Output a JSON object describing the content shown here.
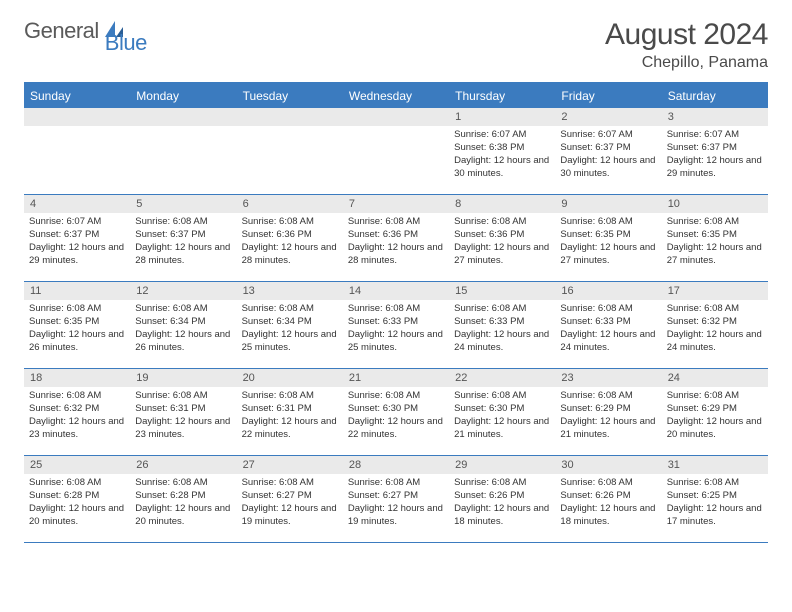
{
  "logo": {
    "text1": "General",
    "text2": "Blue"
  },
  "title": "August 2024",
  "location": "Chepillo, Panama",
  "daysOfWeek": [
    "Sunday",
    "Monday",
    "Tuesday",
    "Wednesday",
    "Thursday",
    "Friday",
    "Saturday"
  ],
  "colors": {
    "accent": "#3b7bbf",
    "headerText": "#ffffff",
    "dayNumBg": "#eaeaea",
    "text": "#333333"
  },
  "firstDayOffset": 4,
  "daysInMonth": 31,
  "days": {
    "1": {
      "sunrise": "6:07 AM",
      "sunset": "6:38 PM",
      "daylight": "12 hours and 30 minutes."
    },
    "2": {
      "sunrise": "6:07 AM",
      "sunset": "6:37 PM",
      "daylight": "12 hours and 30 minutes."
    },
    "3": {
      "sunrise": "6:07 AM",
      "sunset": "6:37 PM",
      "daylight": "12 hours and 29 minutes."
    },
    "4": {
      "sunrise": "6:07 AM",
      "sunset": "6:37 PM",
      "daylight": "12 hours and 29 minutes."
    },
    "5": {
      "sunrise": "6:08 AM",
      "sunset": "6:37 PM",
      "daylight": "12 hours and 28 minutes."
    },
    "6": {
      "sunrise": "6:08 AM",
      "sunset": "6:36 PM",
      "daylight": "12 hours and 28 minutes."
    },
    "7": {
      "sunrise": "6:08 AM",
      "sunset": "6:36 PM",
      "daylight": "12 hours and 28 minutes."
    },
    "8": {
      "sunrise": "6:08 AM",
      "sunset": "6:36 PM",
      "daylight": "12 hours and 27 minutes."
    },
    "9": {
      "sunrise": "6:08 AM",
      "sunset": "6:35 PM",
      "daylight": "12 hours and 27 minutes."
    },
    "10": {
      "sunrise": "6:08 AM",
      "sunset": "6:35 PM",
      "daylight": "12 hours and 27 minutes."
    },
    "11": {
      "sunrise": "6:08 AM",
      "sunset": "6:35 PM",
      "daylight": "12 hours and 26 minutes."
    },
    "12": {
      "sunrise": "6:08 AM",
      "sunset": "6:34 PM",
      "daylight": "12 hours and 26 minutes."
    },
    "13": {
      "sunrise": "6:08 AM",
      "sunset": "6:34 PM",
      "daylight": "12 hours and 25 minutes."
    },
    "14": {
      "sunrise": "6:08 AM",
      "sunset": "6:33 PM",
      "daylight": "12 hours and 25 minutes."
    },
    "15": {
      "sunrise": "6:08 AM",
      "sunset": "6:33 PM",
      "daylight": "12 hours and 24 minutes."
    },
    "16": {
      "sunrise": "6:08 AM",
      "sunset": "6:33 PM",
      "daylight": "12 hours and 24 minutes."
    },
    "17": {
      "sunrise": "6:08 AM",
      "sunset": "6:32 PM",
      "daylight": "12 hours and 24 minutes."
    },
    "18": {
      "sunrise": "6:08 AM",
      "sunset": "6:32 PM",
      "daylight": "12 hours and 23 minutes."
    },
    "19": {
      "sunrise": "6:08 AM",
      "sunset": "6:31 PM",
      "daylight": "12 hours and 23 minutes."
    },
    "20": {
      "sunrise": "6:08 AM",
      "sunset": "6:31 PM",
      "daylight": "12 hours and 22 minutes."
    },
    "21": {
      "sunrise": "6:08 AM",
      "sunset": "6:30 PM",
      "daylight": "12 hours and 22 minutes."
    },
    "22": {
      "sunrise": "6:08 AM",
      "sunset": "6:30 PM",
      "daylight": "12 hours and 21 minutes."
    },
    "23": {
      "sunrise": "6:08 AM",
      "sunset": "6:29 PM",
      "daylight": "12 hours and 21 minutes."
    },
    "24": {
      "sunrise": "6:08 AM",
      "sunset": "6:29 PM",
      "daylight": "12 hours and 20 minutes."
    },
    "25": {
      "sunrise": "6:08 AM",
      "sunset": "6:28 PM",
      "daylight": "12 hours and 20 minutes."
    },
    "26": {
      "sunrise": "6:08 AM",
      "sunset": "6:28 PM",
      "daylight": "12 hours and 20 minutes."
    },
    "27": {
      "sunrise": "6:08 AM",
      "sunset": "6:27 PM",
      "daylight": "12 hours and 19 minutes."
    },
    "28": {
      "sunrise": "6:08 AM",
      "sunset": "6:27 PM",
      "daylight": "12 hours and 19 minutes."
    },
    "29": {
      "sunrise": "6:08 AM",
      "sunset": "6:26 PM",
      "daylight": "12 hours and 18 minutes."
    },
    "30": {
      "sunrise": "6:08 AM",
      "sunset": "6:26 PM",
      "daylight": "12 hours and 18 minutes."
    },
    "31": {
      "sunrise": "6:08 AM",
      "sunset": "6:25 PM",
      "daylight": "12 hours and 17 minutes."
    }
  },
  "labels": {
    "sunrise": "Sunrise:",
    "sunset": "Sunset:",
    "daylight": "Daylight:"
  }
}
